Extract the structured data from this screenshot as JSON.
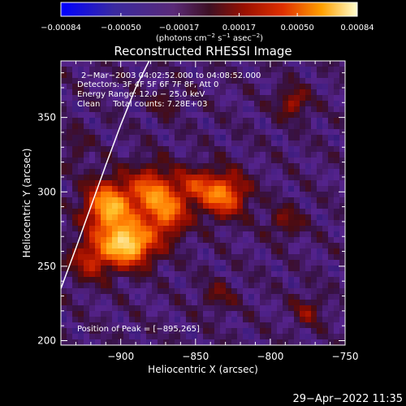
{
  "chart_data": {
    "type": "heatmap",
    "title": "Reconstructed RHESSI Image",
    "xlabel": "Heliocentric X (arcsec)",
    "ylabel": "Heliocentric Y (arcsec)",
    "xlim": [
      -940,
      -750
    ],
    "ylim": [
      197,
      388
    ],
    "xticks": [
      -900,
      -850,
      -800,
      -750
    ],
    "yticks": [
      200,
      250,
      300,
      350
    ],
    "xtick_labels": [
      "−900",
      "−850",
      "−800",
      "−750"
    ],
    "ytick_labels": [
      "200",
      "250",
      "300",
      "350"
    ],
    "colorbar": {
      "range": [
        -0.00084,
        0.00084
      ],
      "ticks": [
        -0.00084,
        -0.0005,
        -0.00017,
        0.00017,
        0.0005,
        0.00084
      ],
      "tick_labels": [
        "−0.00084",
        "−0.00050",
        "−0.00017",
        "0.00017",
        "0.00050",
        "0.00084"
      ],
      "unit_prefix": "(photons cm",
      "unit_exp1": "−2",
      "unit_mid": " s",
      "unit_exp2": "−1",
      "unit_mid2": " asec",
      "unit_exp3": "−2",
      "unit_suffix": ")"
    },
    "annotations": [
      "2−Mar−2003 04:02:52.000 to 04:08:52.000",
      "Detectors: 3F 4F 5F 6F 7F 8F, Att 0",
      "Energy Range: 12.0 − 25.0 keV",
      "Clean     Total counts: 7.28E+03"
    ],
    "peak_label": "Position of Peak = [−895,265]",
    "peak": [
      -895,
      265
    ],
    "sources": [
      {
        "x": -895,
        "y": 265,
        "sx": 12,
        "sy": 10,
        "amp": 1.0
      },
      {
        "x": -908,
        "y": 290,
        "sx": 11,
        "sy": 12,
        "amp": 0.85
      },
      {
        "x": -880,
        "y": 300,
        "sx": 10,
        "sy": 12,
        "amp": 0.6
      },
      {
        "x": -868,
        "y": 285,
        "sx": 9,
        "sy": 11,
        "amp": 0.55
      },
      {
        "x": -852,
        "y": 305,
        "sx": 9,
        "sy": 8,
        "amp": 0.35
      },
      {
        "x": -832,
        "y": 298,
        "sx": 11,
        "sy": 10,
        "amp": 0.7
      },
      {
        "x": -920,
        "y": 255,
        "sx": 10,
        "sy": 10,
        "amp": 0.4
      },
      {
        "x": -785,
        "y": 360,
        "sx": 7,
        "sy": 7,
        "amp": 0.35
      },
      {
        "x": -790,
        "y": 280,
        "sx": 8,
        "sy": 7,
        "amp": 0.25
      },
      {
        "x": -870,
        "y": 360,
        "sx": 6,
        "sy": 6,
        "amp": 0.2
      },
      {
        "x": -835,
        "y": 230,
        "sx": 8,
        "sy": 7,
        "amp": 0.2
      },
      {
        "x": -775,
        "y": 220,
        "sx": 7,
        "sy": 7,
        "amp": 0.25
      },
      {
        "x": -930,
        "y": 330,
        "sx": 6,
        "sy": 8,
        "amp": 0.15
      }
    ],
    "limb": [
      [
        -940,
        235
      ],
      [
        -930,
        262
      ],
      [
        -920,
        290
      ],
      [
        -910,
        318
      ],
      [
        -900,
        345
      ],
      [
        -890,
        370
      ],
      [
        -880,
        390
      ]
    ]
  },
  "timestamp": "29−Apr−2022 11:35"
}
